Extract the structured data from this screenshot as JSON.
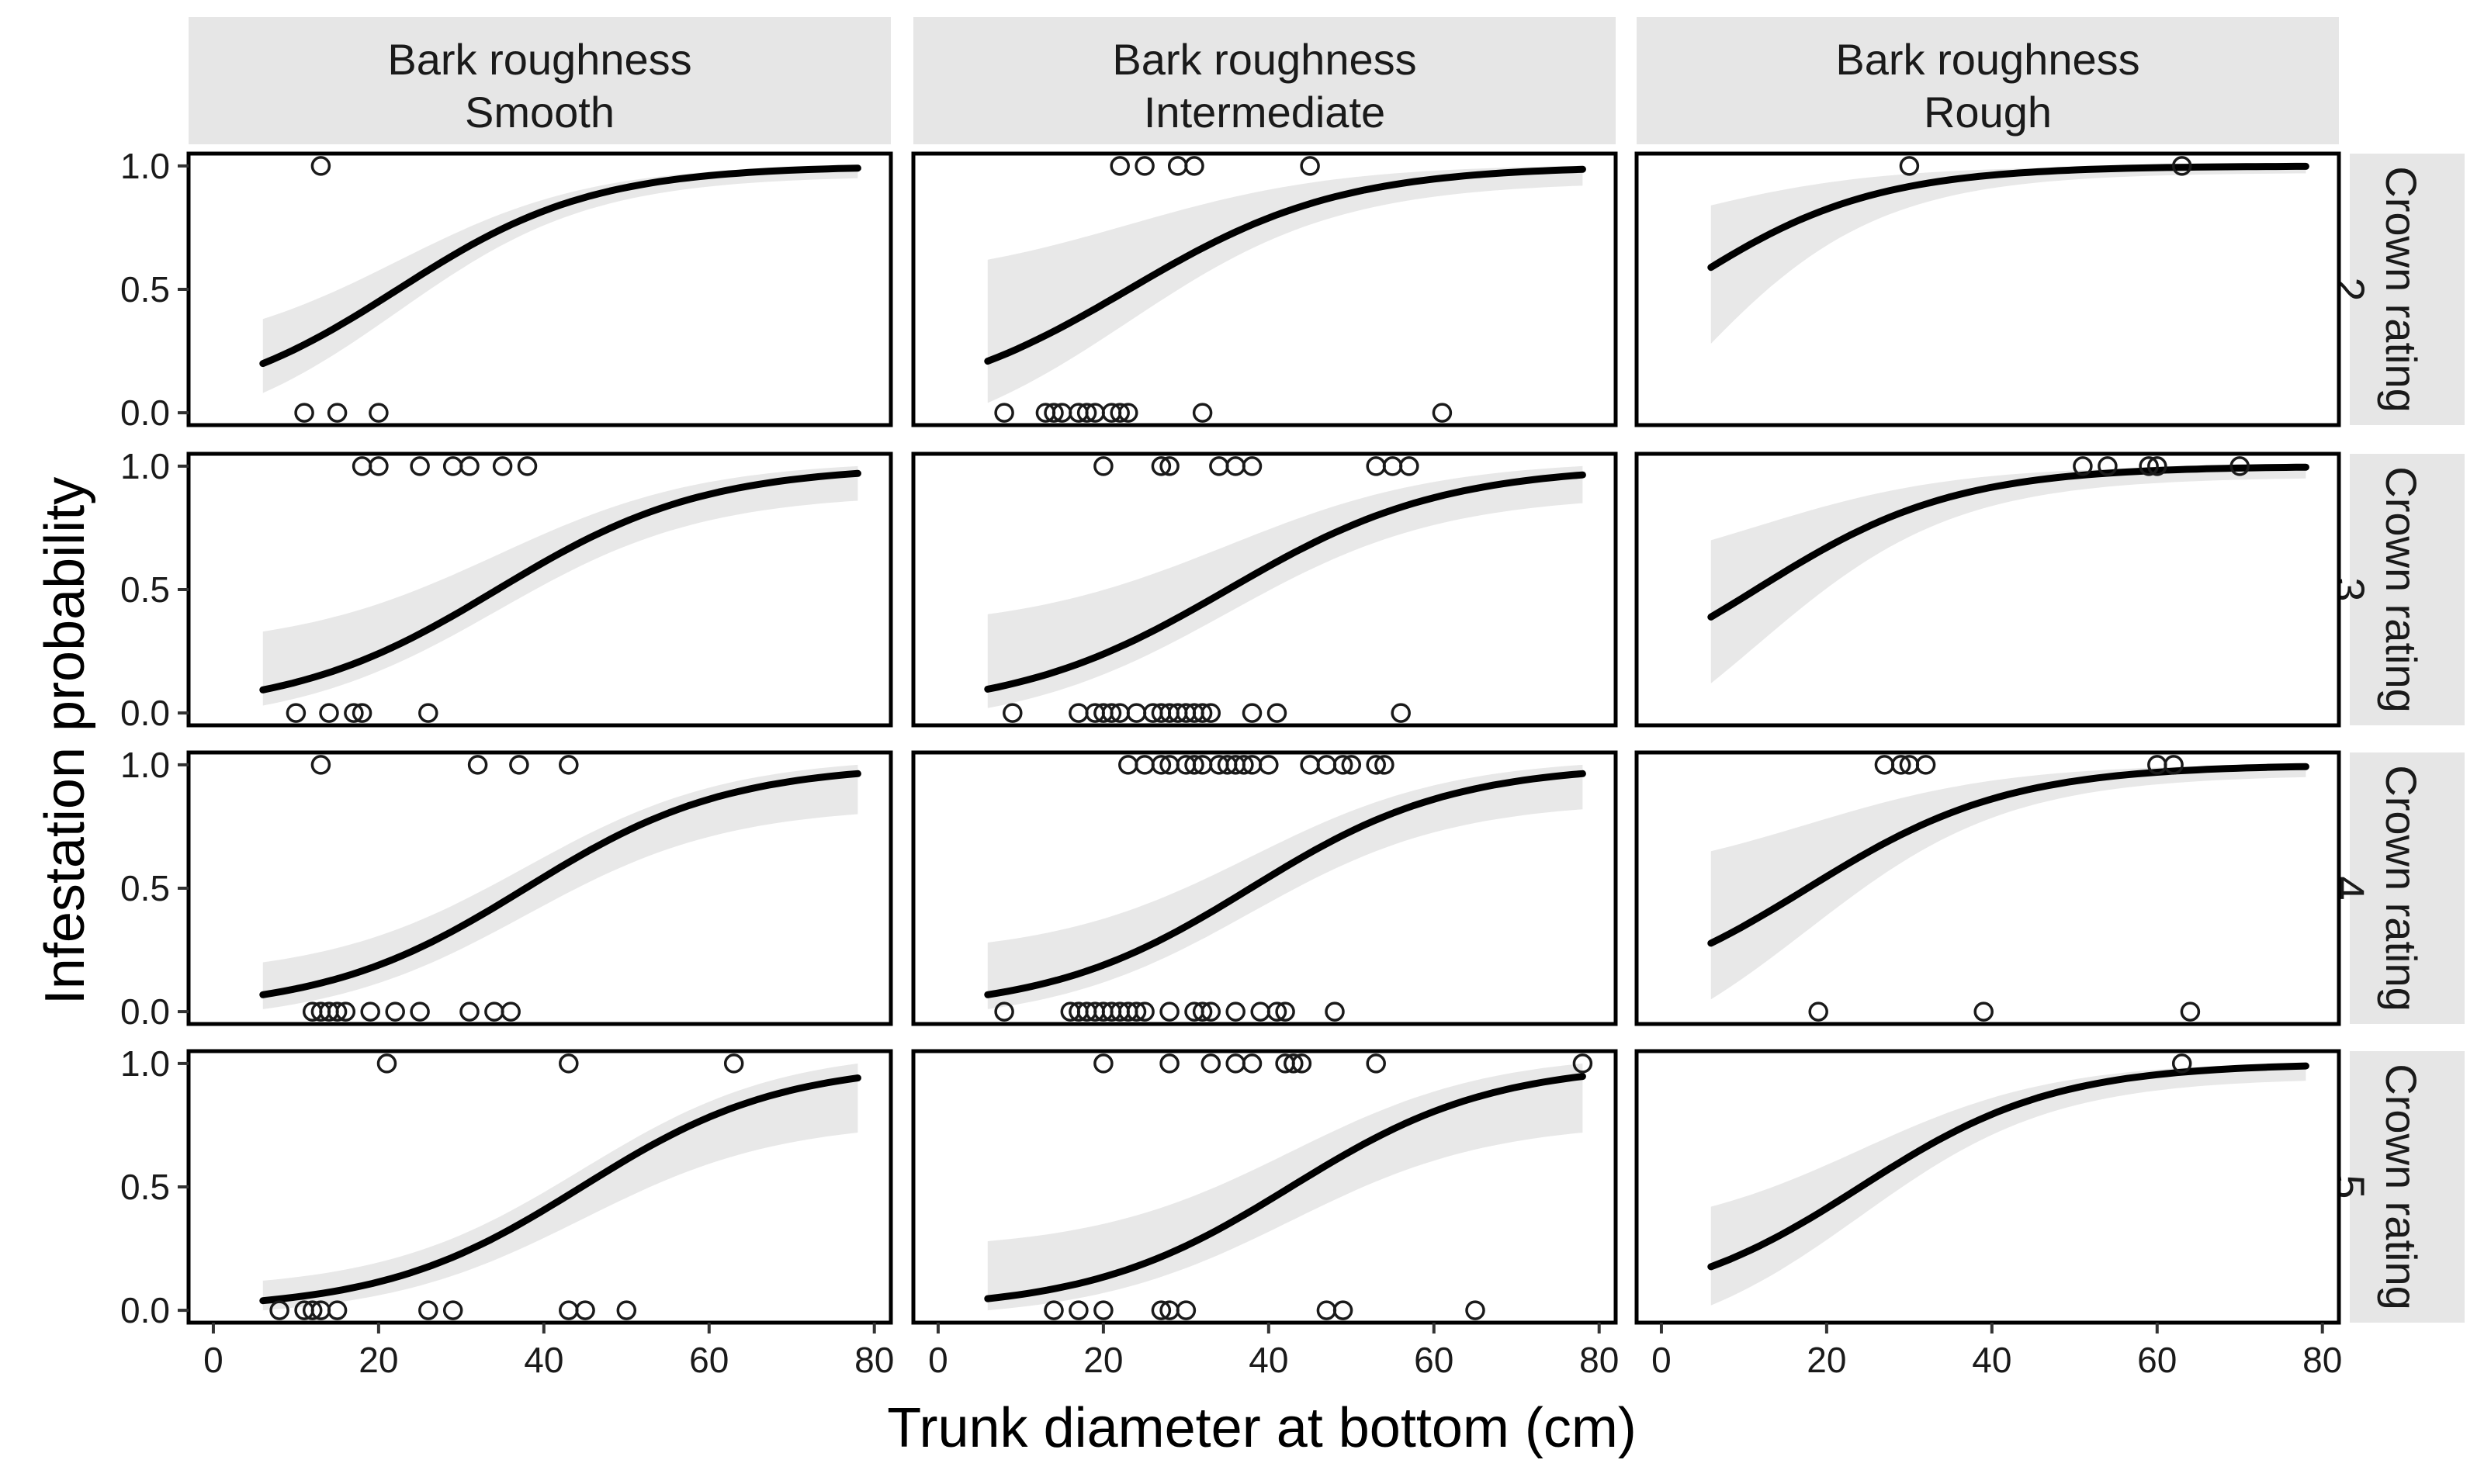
{
  "chart_data": {
    "type": "scatter",
    "subtype": "faceted logistic regression with confidence ribbon",
    "xlabel": "Trunk diameter at bottom (cm)",
    "ylabel": "Infestation probability",
    "xlim": [
      -3,
      82
    ],
    "ylim": [
      -0.05,
      1.05
    ],
    "xticks": [
      0,
      20,
      40,
      60,
      80
    ],
    "yticks": [
      0.0,
      0.5,
      1.0
    ],
    "ytick_labels": [
      "0.0",
      "0.5",
      "1.0"
    ],
    "column_facets": [
      {
        "line1": "Bark roughness",
        "line2": "Smooth"
      },
      {
        "line1": "Bark roughness",
        "line2": "Intermediate"
      },
      {
        "line1": "Bark roughness",
        "line2": "Rough"
      }
    ],
    "row_facets": [
      {
        "line1": "Crown rating",
        "line2": "2"
      },
      {
        "line1": "Crown rating",
        "line2": "3"
      },
      {
        "line1": "Crown rating",
        "line2": "4"
      },
      {
        "line1": "Crown rating",
        "line2": "5"
      }
    ],
    "curve_x_range": [
      6,
      78
    ],
    "panels": [
      {
        "row": 0,
        "col": 0,
        "b0": -1.9,
        "b1": 0.085,
        "ribbon_lo_start": 0.08,
        "ribbon_hi_start": 0.38,
        "ribbon_lo_end": 0.95,
        "ribbon_hi_end": 1.0,
        "points": [
          [
            13,
            1
          ],
          [
            11,
            0
          ],
          [
            15,
            0
          ],
          [
            20,
            0
          ]
        ]
      },
      {
        "row": 0,
        "col": 1,
        "b0": -1.8,
        "b1": 0.078,
        "ribbon_lo_start": 0.04,
        "ribbon_hi_start": 0.62,
        "ribbon_lo_end": 0.92,
        "ribbon_hi_end": 1.0,
        "points": [
          [
            22,
            1
          ],
          [
            25,
            1
          ],
          [
            29,
            1
          ],
          [
            31,
            1
          ],
          [
            45,
            1
          ],
          [
            8,
            0
          ],
          [
            13,
            0
          ],
          [
            14,
            0
          ],
          [
            15,
            0
          ],
          [
            17,
            0
          ],
          [
            18,
            0
          ],
          [
            19,
            0
          ],
          [
            21,
            0
          ],
          [
            22,
            0
          ],
          [
            23,
            0
          ],
          [
            32,
            0
          ],
          [
            61,
            0
          ]
        ]
      },
      {
        "row": 0,
        "col": 2,
        "b0": -0.15,
        "b1": 0.085,
        "ribbon_lo_start": 0.28,
        "ribbon_hi_start": 0.84,
        "ribbon_lo_end": 0.97,
        "ribbon_hi_end": 1.0,
        "points": [
          [
            30,
            1
          ],
          [
            63,
            1
          ]
        ]
      },
      {
        "row": 1,
        "col": 0,
        "b0": -2.75,
        "b1": 0.08,
        "ribbon_lo_start": 0.03,
        "ribbon_hi_start": 0.33,
        "ribbon_lo_end": 0.86,
        "ribbon_hi_end": 1.0,
        "points": [
          [
            18,
            1
          ],
          [
            20,
            1
          ],
          [
            25,
            1
          ],
          [
            29,
            1
          ],
          [
            31,
            1
          ],
          [
            35,
            1
          ],
          [
            38,
            1
          ],
          [
            10,
            0
          ],
          [
            14,
            0
          ],
          [
            17,
            0
          ],
          [
            18,
            0
          ],
          [
            26,
            0
          ]
        ]
      },
      {
        "row": 1,
        "col": 1,
        "b0": -2.7,
        "b1": 0.077,
        "ribbon_lo_start": 0.02,
        "ribbon_hi_start": 0.4,
        "ribbon_lo_end": 0.85,
        "ribbon_hi_end": 1.0,
        "points": [
          [
            20,
            1
          ],
          [
            27,
            1
          ],
          [
            28,
            1
          ],
          [
            34,
            1
          ],
          [
            36,
            1
          ],
          [
            38,
            1
          ],
          [
            53,
            1
          ],
          [
            55,
            1
          ],
          [
            57,
            1
          ],
          [
            9,
            0
          ],
          [
            17,
            0
          ],
          [
            19,
            0
          ],
          [
            20,
            0
          ],
          [
            21,
            0
          ],
          [
            22,
            0
          ],
          [
            24,
            0
          ],
          [
            26,
            0
          ],
          [
            27,
            0
          ],
          [
            28,
            0
          ],
          [
            29,
            0
          ],
          [
            30,
            0
          ],
          [
            31,
            0
          ],
          [
            32,
            0
          ],
          [
            33,
            0
          ],
          [
            38,
            0
          ],
          [
            41,
            0
          ],
          [
            56,
            0
          ]
        ]
      },
      {
        "row": 1,
        "col": 2,
        "b0": -0.95,
        "b1": 0.083,
        "ribbon_lo_start": 0.12,
        "ribbon_hi_start": 0.7,
        "ribbon_lo_end": 0.95,
        "ribbon_hi_end": 1.0,
        "points": [
          [
            51,
            1
          ],
          [
            54,
            1
          ],
          [
            59,
            1
          ],
          [
            60,
            1
          ],
          [
            70,
            1
          ]
        ]
      },
      {
        "row": 2,
        "col": 0,
        "b0": -3.1,
        "b1": 0.082,
        "ribbon_lo_start": 0.01,
        "ribbon_hi_start": 0.2,
        "ribbon_lo_end": 0.8,
        "ribbon_hi_end": 1.0,
        "points": [
          [
            13,
            1
          ],
          [
            32,
            1
          ],
          [
            37,
            1
          ],
          [
            43,
            1
          ],
          [
            12,
            0
          ],
          [
            13,
            0
          ],
          [
            14,
            0
          ],
          [
            15,
            0
          ],
          [
            16,
            0
          ],
          [
            19,
            0
          ],
          [
            22,
            0
          ],
          [
            25,
            0
          ],
          [
            31,
            0
          ],
          [
            34,
            0
          ],
          [
            36,
            0
          ]
        ]
      },
      {
        "row": 2,
        "col": 1,
        "b0": -3.1,
        "b1": 0.082,
        "ribbon_lo_start": 0.01,
        "ribbon_hi_start": 0.28,
        "ribbon_lo_end": 0.82,
        "ribbon_hi_end": 1.0,
        "points": [
          [
            23,
            1
          ],
          [
            25,
            1
          ],
          [
            27,
            1
          ],
          [
            28,
            1
          ],
          [
            30,
            1
          ],
          [
            31,
            1
          ],
          [
            32,
            1
          ],
          [
            34,
            1
          ],
          [
            35,
            1
          ],
          [
            36,
            1
          ],
          [
            37,
            1
          ],
          [
            38,
            1
          ],
          [
            40,
            1
          ],
          [
            45,
            1
          ],
          [
            47,
            1
          ],
          [
            49,
            1
          ],
          [
            50,
            1
          ],
          [
            53,
            1
          ],
          [
            54,
            1
          ],
          [
            8,
            0
          ],
          [
            16,
            0
          ],
          [
            17,
            0
          ],
          [
            18,
            0
          ],
          [
            19,
            0
          ],
          [
            20,
            0
          ],
          [
            21,
            0
          ],
          [
            22,
            0
          ],
          [
            23,
            0
          ],
          [
            24,
            0
          ],
          [
            25,
            0
          ],
          [
            28,
            0
          ],
          [
            31,
            0
          ],
          [
            32,
            0
          ],
          [
            33,
            0
          ],
          [
            36,
            0
          ],
          [
            39,
            0
          ],
          [
            41,
            0
          ],
          [
            42,
            0
          ],
          [
            48,
            0
          ]
        ]
      },
      {
        "row": 2,
        "col": 2,
        "b0": -1.45,
        "b1": 0.082,
        "ribbon_lo_start": 0.05,
        "ribbon_hi_start": 0.65,
        "ribbon_lo_end": 0.95,
        "ribbon_hi_end": 1.0,
        "points": [
          [
            27,
            1
          ],
          [
            29,
            1
          ],
          [
            30,
            1
          ],
          [
            32,
            1
          ],
          [
            60,
            1
          ],
          [
            62,
            1
          ],
          [
            19,
            0
          ],
          [
            39,
            0
          ],
          [
            64,
            0
          ]
        ]
      },
      {
        "row": 3,
        "col": 0,
        "b0": -3.7,
        "b1": 0.083,
        "ribbon_lo_start": 0.0,
        "ribbon_hi_start": 0.12,
        "ribbon_lo_end": 0.72,
        "ribbon_hi_end": 1.0,
        "points": [
          [
            21,
            1
          ],
          [
            43,
            1
          ],
          [
            63,
            1
          ],
          [
            8,
            0
          ],
          [
            11,
            0
          ],
          [
            12,
            0
          ],
          [
            13,
            0
          ],
          [
            15,
            0
          ],
          [
            26,
            0
          ],
          [
            29,
            0
          ],
          [
            43,
            0
          ],
          [
            45,
            0
          ],
          [
            50,
            0
          ]
        ]
      },
      {
        "row": 3,
        "col": 1,
        "b0": -3.5,
        "b1": 0.082,
        "ribbon_lo_start": 0.0,
        "ribbon_hi_start": 0.28,
        "ribbon_lo_end": 0.72,
        "ribbon_hi_end": 1.0,
        "points": [
          [
            20,
            1
          ],
          [
            28,
            1
          ],
          [
            33,
            1
          ],
          [
            36,
            1
          ],
          [
            38,
            1
          ],
          [
            42,
            1
          ],
          [
            43,
            1
          ],
          [
            44,
            1
          ],
          [
            53,
            1
          ],
          [
            78,
            1
          ],
          [
            14,
            0
          ],
          [
            17,
            0
          ],
          [
            20,
            0
          ],
          [
            27,
            0
          ],
          [
            28,
            0
          ],
          [
            30,
            0
          ],
          [
            47,
            0
          ],
          [
            49,
            0
          ],
          [
            65,
            0
          ]
        ]
      },
      {
        "row": 3,
        "col": 2,
        "b0": -2.05,
        "b1": 0.085,
        "ribbon_lo_start": 0.02,
        "ribbon_hi_start": 0.42,
        "ribbon_lo_end": 0.93,
        "ribbon_hi_end": 1.0,
        "points": [
          [
            63,
            1
          ]
        ]
      }
    ]
  }
}
